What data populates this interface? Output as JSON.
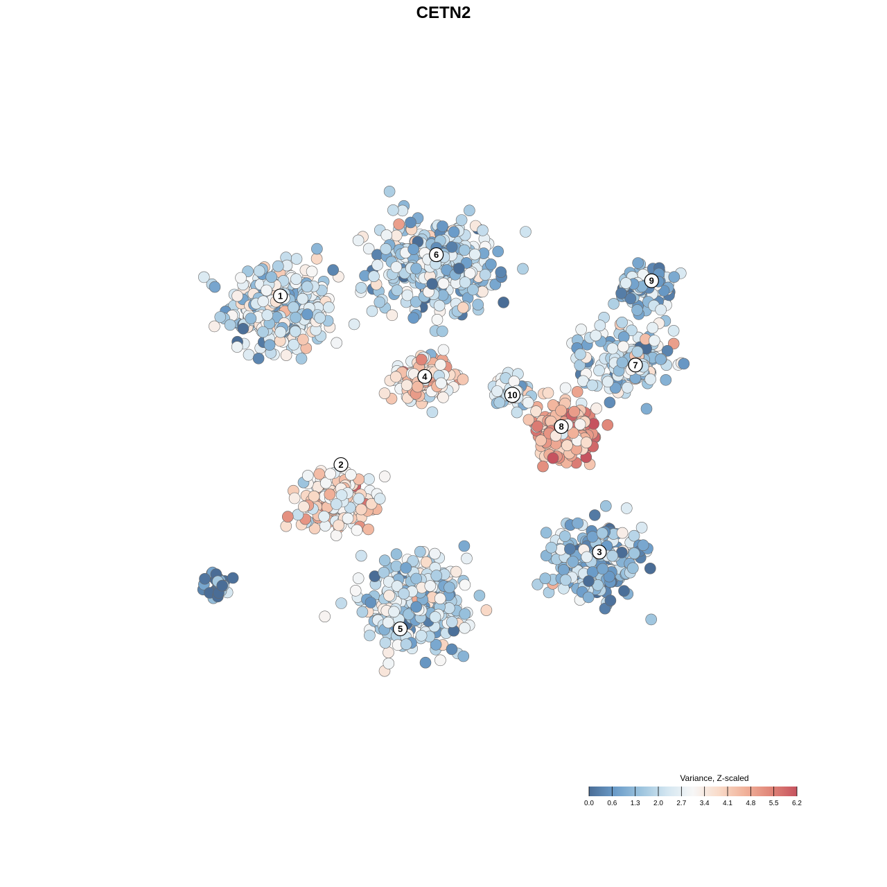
{
  "chart_data": {
    "type": "scatter",
    "title": "CETN2",
    "xlabel": "",
    "ylabel": "",
    "grid": false,
    "axes_visible": false,
    "xlim": [
      0,
      100
    ],
    "ylim": [
      0,
      100
    ],
    "color_scale": {
      "title": "Variance, Z-scaled",
      "min": 0.0,
      "max": 6.2,
      "ticks": [
        "0.0",
        "0.6",
        "1.3",
        "2.0",
        "2.7",
        "3.4",
        "4.1",
        "4.8",
        "5.5",
        "6.2"
      ],
      "palette": [
        "#4a6d96",
        "#6b9cc9",
        "#9dc4de",
        "#d3e6f1",
        "#f7f7f7",
        "#f9dbc9",
        "#f1b29a",
        "#e08578",
        "#c6535f"
      ],
      "legend_position": "bottom-right"
    },
    "clusters": [
      {
        "label": "1",
        "x": 22,
        "y": 71,
        "value": 2.3,
        "spread": 7.5,
        "n": 330
      },
      {
        "label": "6",
        "x": 46,
        "y": 78,
        "value": 1.9,
        "spread": 8.5,
        "n": 330
      },
      {
        "label": "9",
        "x": 79,
        "y": 74,
        "value": 1.7,
        "spread": 4.5,
        "n": 110
      },
      {
        "label": "7",
        "x": 76,
        "y": 63,
        "value": 2.1,
        "spread": 6.5,
        "n": 160
      },
      {
        "label": "4",
        "x": 44,
        "y": 60,
        "value": 3.8,
        "spread": 4.0,
        "n": 160
      },
      {
        "label": "10",
        "x": 58,
        "y": 58,
        "value": 2.4,
        "spread": 2.5,
        "n": 55
      },
      {
        "label": "8",
        "x": 66,
        "y": 52,
        "value": 4.6,
        "spread": 5.0,
        "n": 170
      },
      {
        "label": "2",
        "x": 31,
        "y": 41,
        "value": 3.5,
        "spread": 5.5,
        "n": 170
      },
      {
        "label": "3",
        "x": 71,
        "y": 31,
        "value": 1.4,
        "spread": 6.5,
        "n": 260
      },
      {
        "label": "5",
        "x": 43,
        "y": 24,
        "value": 2.1,
        "spread": 7.5,
        "n": 310
      }
    ],
    "outlier_group": {
      "x": 12,
      "y": 28,
      "value": 0.3,
      "spread": 2.0,
      "n": 28
    },
    "label_positions": [
      {
        "label": "1",
        "x": 22.0,
        "y": 73.0
      },
      {
        "label": "6",
        "x": 46.2,
        "y": 79.5
      },
      {
        "label": "9",
        "x": 79.6,
        "y": 75.4
      },
      {
        "label": "7",
        "x": 77.1,
        "y": 62.1
      },
      {
        "label": "4",
        "x": 44.4,
        "y": 60.3
      },
      {
        "label": "10",
        "x": 58.0,
        "y": 57.4
      },
      {
        "label": "8",
        "x": 65.6,
        "y": 52.4
      },
      {
        "label": "2",
        "x": 31.4,
        "y": 46.4
      },
      {
        "label": "3",
        "x": 71.5,
        "y": 32.6
      },
      {
        "label": "5",
        "x": 40.6,
        "y": 20.5
      }
    ]
  }
}
